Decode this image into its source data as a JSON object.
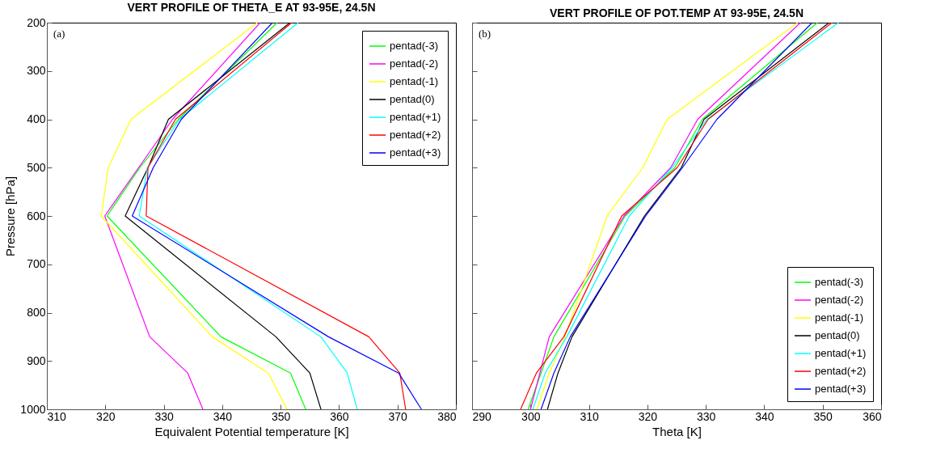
{
  "chart_data": [
    {
      "type": "line",
      "title": "VERT PROFILE OF THETA_E AT 93-95E, 24.5N",
      "xlabel": "Equivalent Potential temperature [K]",
      "ylabel": "Pressure [hPa]",
      "annotations": [
        "(a)"
      ],
      "xlim": [
        310,
        380
      ],
      "xticks": [
        310,
        320,
        330,
        340,
        350,
        360,
        370,
        380
      ],
      "ylim": [
        1000,
        200
      ],
      "yticks": [
        200,
        300,
        400,
        500,
        600,
        700,
        800,
        900,
        1000
      ],
      "grid": false,
      "legend": "top right",
      "marker": "none",
      "line_style": "solid",
      "series": [
        {
          "name": "pentad(-3)",
          "color": "#00ff00",
          "x": [
            354.3,
            351.7,
            339.8,
            320.3,
            325.9,
            332.5,
            349.4
          ],
          "values": [
            1000,
            925,
            850,
            600,
            500,
            400,
            200
          ]
        },
        {
          "name": "pentad(-2)",
          "color": "#ff00ff",
          "x": [
            336.7,
            334.1,
            327.6,
            319.9,
            325.7,
            331.5,
            346.5
          ],
          "values": [
            1000,
            925,
            850,
            600,
            500,
            400,
            200
          ]
        },
        {
          "name": "pentad(-1)",
          "color": "#ffff00",
          "x": [
            351.1,
            347.9,
            338.3,
            319.3,
            320.5,
            324.4,
            346.0
          ],
          "values": [
            1000,
            925,
            850,
            600,
            500,
            400,
            200
          ]
        },
        {
          "name": "pentad(0)",
          "color": "#000000",
          "x": [
            356.9,
            355.0,
            349.2,
            323.4,
            327.3,
            330.8,
            351.6
          ],
          "values": [
            1000,
            925,
            850,
            600,
            500,
            400,
            200
          ]
        },
        {
          "name": "pentad(+1)",
          "color": "#00ffff",
          "x": [
            363.1,
            361.4,
            356.9,
            325.8,
            327.2,
            332.7,
            353.0
          ],
          "values": [
            1000,
            925,
            850,
            600,
            500,
            400,
            200
          ]
        },
        {
          "name": "pentad(+2)",
          "color": "#ff0000",
          "x": [
            371.4,
            370.4,
            365.1,
            327.0,
            327.3,
            332.0,
            351.9
          ],
          "values": [
            1000,
            925,
            850,
            600,
            500,
            400,
            200
          ]
        },
        {
          "name": "pentad(+3)",
          "color": "#0000ff",
          "x": [
            374.1,
            370.2,
            358.2,
            324.6,
            328.2,
            333.0,
            348.6
          ],
          "values": [
            1000,
            925,
            850,
            600,
            500,
            400,
            200
          ]
        }
      ]
    },
    {
      "type": "line",
      "title": "VERT PROFILE OF POT.TEMP AT 93-95E, 24.5N",
      "xlabel": "Theta [K]",
      "annotations": [
        "(b)"
      ],
      "xlim": [
        290,
        360
      ],
      "xticks": [
        290,
        300,
        310,
        320,
        330,
        340,
        350,
        360
      ],
      "ylim": [
        1000,
        200
      ],
      "yticks": [
        200,
        300,
        400,
        500,
        600,
        700,
        800,
        900,
        1000
      ],
      "tick_labels": "x",
      "grid": false,
      "legend": "bottom right",
      "marker": "none",
      "line_style": "solid",
      "series": [
        {
          "name": "pentad(-3)",
          "color": "#00ff00",
          "x": [
            299.6,
            301.8,
            304.0,
            316.2,
            324.7,
            329.4,
            349.1
          ],
          "values": [
            1000,
            925,
            850,
            600,
            500,
            400,
            200
          ]
        },
        {
          "name": "pentad(-2)",
          "color": "#ff00ff",
          "x": [
            300.0,
            301.6,
            303.2,
            316.0,
            324.0,
            328.6,
            346.2
          ],
          "values": [
            1000,
            925,
            850,
            600,
            500,
            400,
            200
          ]
        },
        {
          "name": "pentad(-1)",
          "color": "#ffff00",
          "x": [
            301.1,
            303.2,
            305.9,
            313.1,
            319.2,
            323.4,
            345.7
          ],
          "values": [
            1000,
            925,
            850,
            600,
            500,
            400,
            200
          ]
        },
        {
          "name": "pentad(0)",
          "color": "#000000",
          "x": [
            302.9,
            304.7,
            307.1,
            319.5,
            325.8,
            329.7,
            351.1
          ],
          "values": [
            1000,
            925,
            850,
            600,
            500,
            400,
            200
          ]
        },
        {
          "name": "pentad(+1)",
          "color": "#00ffff",
          "x": [
            300.4,
            302.5,
            306.2,
            316.9,
            324.2,
            330.2,
            352.7
          ],
          "values": [
            1000,
            925,
            850,
            600,
            500,
            400,
            200
          ]
        },
        {
          "name": "pentad(+2)",
          "color": "#ff0000",
          "x": [
            298.3,
            301.0,
            305.7,
            315.6,
            325.1,
            330.4,
            351.6
          ],
          "values": [
            1000,
            925,
            850,
            600,
            500,
            400,
            200
          ]
        },
        {
          "name": "pentad(+3)",
          "color": "#0000ff",
          "x": [
            301.8,
            304.0,
            306.8,
            319.7,
            326.0,
            331.9,
            348.2
          ],
          "values": [
            1000,
            925,
            850,
            600,
            500,
            400,
            200
          ]
        }
      ]
    }
  ]
}
